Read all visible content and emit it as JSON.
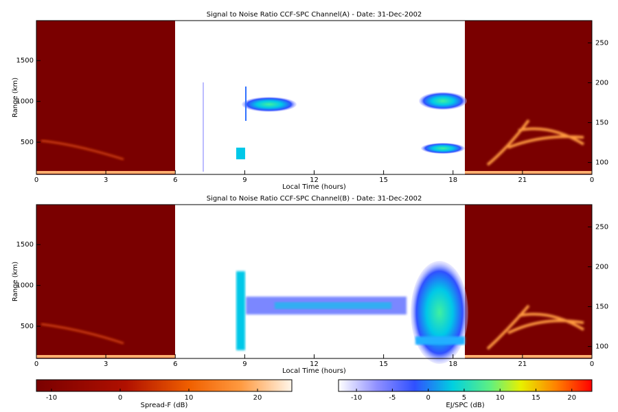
{
  "chart_data": [
    {
      "type": "heatmap",
      "title": "Signal to Noise Ratio CCF-SPC Channel(A) - Date: 31-Dec-2002",
      "xlabel": "Local Time (hours)",
      "ylabel": "Range (km)",
      "xlim": [
        0,
        24
      ],
      "xticks": [
        0,
        3,
        6,
        9,
        12,
        15,
        18,
        21,
        {
          "value": 24,
          "label": "0"
        }
      ],
      "ylim": [
        105,
        1990
      ],
      "yticks": [
        500,
        1000,
        1500
      ],
      "y2lim": [
        85,
        278
      ],
      "y2ticks": [
        100,
        150,
        200,
        250
      ]
    },
    {
      "type": "heatmap",
      "title": "Signal to Noise Ratio CCF-SPC Channel(B) - Date: 31-Dec-2002",
      "xlabel": "Local Time (hours)",
      "ylabel": "Range (km)",
      "xlim": [
        0,
        24
      ],
      "xticks": [
        0,
        3,
        6,
        9,
        12,
        15,
        18,
        21,
        {
          "value": 24,
          "label": "0"
        }
      ],
      "ylim": [
        105,
        1990
      ],
      "yticks": [
        500,
        1000,
        1500
      ],
      "y2lim": [
        85,
        278
      ],
      "y2ticks": [
        100,
        150,
        200,
        250
      ]
    },
    {
      "type": "colorbar",
      "label": "Spread-F (dB)",
      "xlim": [
        -12.2,
        25
      ],
      "xticks": [
        -10,
        0,
        10,
        20
      ]
    },
    {
      "type": "colorbar",
      "label": "EJ/SPC (dB)",
      "xlim": [
        -12.5,
        22.8
      ],
      "xticks": [
        -10,
        -5,
        0,
        5,
        10,
        15,
        20
      ]
    }
  ]
}
